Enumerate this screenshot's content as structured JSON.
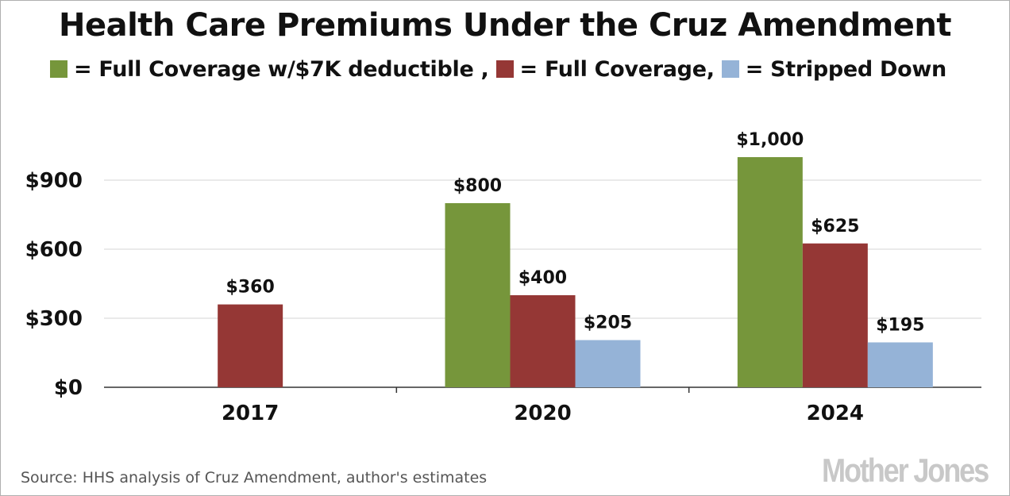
{
  "chart_data": {
    "type": "bar",
    "title": "Health Care Premiums Under the Cruz Amendment",
    "categories": [
      "2017",
      "2020",
      "2024"
    ],
    "series": [
      {
        "name": "= Full Coverage w/$7K deductible ,",
        "color": "#76963b",
        "values": [
          null,
          800,
          1000
        ],
        "labels": [
          null,
          "$800",
          "$1,000"
        ]
      },
      {
        "name": "= Full Coverage,",
        "color": "#953735",
        "values": [
          360,
          400,
          625
        ],
        "labels": [
          "$360",
          "$400",
          "$625"
        ]
      },
      {
        "name": "= Stripped Down",
        "color": "#95b3d7",
        "values": [
          null,
          205,
          195
        ],
        "labels": [
          null,
          "$205",
          "$195"
        ]
      }
    ],
    "yticks": [
      0,
      300,
      600,
      900
    ],
    "ytick_labels": [
      "$0",
      "$300",
      "$600",
      "$900"
    ],
    "ylim": [
      0,
      1100
    ],
    "grid": true,
    "legend_position": "top"
  },
  "source": "Source: HHS analysis of Cruz Amendment, author's estimates",
  "logo": "Mother Jones"
}
